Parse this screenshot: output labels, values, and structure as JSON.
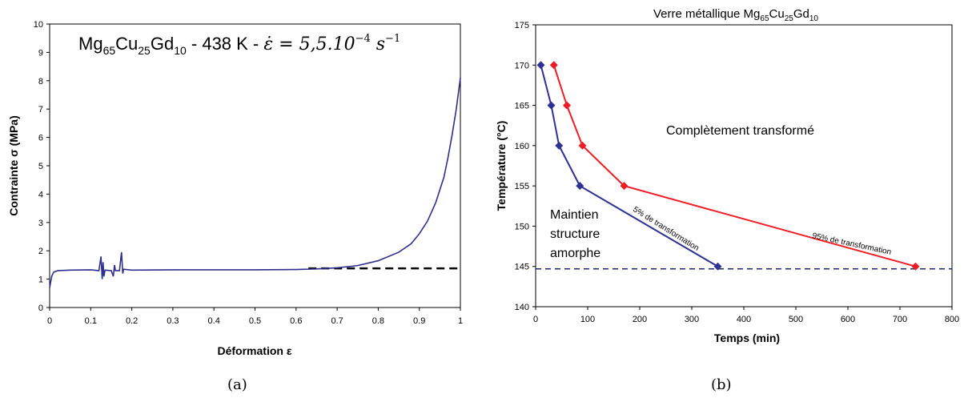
{
  "chart_data": [
    {
      "type": "line",
      "panel": "(a)",
      "title_main": "Mg",
      "title_sub1": "65",
      "title_mid": "Cu",
      "title_sub2": "25",
      "title_mid2": "Gd",
      "title_sub3": "10",
      "title_rest": " - 438 K - ",
      "title_rate": "ε̇ = 5,5.10",
      "title_exp": "−4",
      "title_unit": " s",
      "title_unit_exp": "−1",
      "xlabel": "Déformation ε",
      "ylabel": "Contrainte σ (MPa)",
      "xlim": [
        0,
        1
      ],
      "ylim": [
        0,
        10
      ],
      "xticks": [
        "0",
        "0.1",
        "0.2",
        "0.3",
        "0.4",
        "0.5",
        "0.6",
        "0.7",
        "0.8",
        "0.9",
        "1"
      ],
      "yticks": [
        "0",
        "1",
        "2",
        "3",
        "4",
        "5",
        "6",
        "7",
        "8",
        "9",
        "10"
      ],
      "series": [
        {
          "color": "#2e2e8c",
          "x": [
            0,
            0.005,
            0.01,
            0.02,
            0.05,
            0.1,
            0.12,
            0.125,
            0.128,
            0.13,
            0.132,
            0.135,
            0.15,
            0.155,
            0.158,
            0.16,
            0.17,
            0.175,
            0.178,
            0.18,
            0.2,
            0.3,
            0.4,
            0.5,
            0.6,
            0.65,
            0.7,
            0.75,
            0.8,
            0.85,
            0.88,
            0.9,
            0.92,
            0.94,
            0.96,
            0.97,
            0.98,
            0.99,
            1.0
          ],
          "y": [
            0.7,
            1.1,
            1.25,
            1.3,
            1.32,
            1.33,
            1.3,
            1.8,
            1.0,
            1.6,
            1.1,
            1.32,
            1.3,
            1.1,
            1.5,
            1.3,
            1.3,
            1.95,
            1.2,
            1.35,
            1.32,
            1.33,
            1.33,
            1.33,
            1.34,
            1.36,
            1.4,
            1.48,
            1.65,
            1.95,
            2.25,
            2.6,
            3.05,
            3.7,
            4.6,
            5.3,
            6.1,
            7.0,
            8.1
          ]
        }
      ],
      "reference_line": {
        "y": 1.38,
        "x_start": 0.63,
        "x_end": 1.0,
        "style": "dashed",
        "color": "#000000"
      }
    },
    {
      "type": "line",
      "panel": "(b)",
      "title_main": "Verre métallique Mg",
      "title_sub1": "65",
      "title_mid": "Cu",
      "title_sub2": "25",
      "title_mid2": "Gd",
      "title_sub3": "10",
      "xlabel": "Temps (min)",
      "ylabel": "Température (°C)",
      "xlim": [
        0,
        800
      ],
      "ylim": [
        140,
        175
      ],
      "xticks": [
        "0",
        "100",
        "200",
        "300",
        "400",
        "500",
        "600",
        "700",
        "800"
      ],
      "yticks": [
        "140",
        "145",
        "150",
        "155",
        "160",
        "165",
        "170",
        "175"
      ],
      "series": [
        {
          "color": "#2e3192",
          "marker": "diamond",
          "label": "5% de transformation",
          "x": [
            10,
            30,
            45,
            85,
            350
          ],
          "y": [
            170,
            165,
            160,
            155,
            145
          ]
        },
        {
          "color": "#ee1c24",
          "marker": "diamond",
          "label": "95% de transformation",
          "x": [
            35,
            60,
            90,
            170,
            730
          ],
          "y": [
            170,
            165,
            160,
            155,
            145
          ]
        }
      ],
      "reference_line": {
        "y": 144.7,
        "style": "dashed",
        "color": "#1f2a6e"
      },
      "annotations": {
        "complete": "Complètement transformé",
        "maintain_1": "Maintien",
        "maintain_2": "structure",
        "maintain_3": "amorphe"
      }
    }
  ]
}
